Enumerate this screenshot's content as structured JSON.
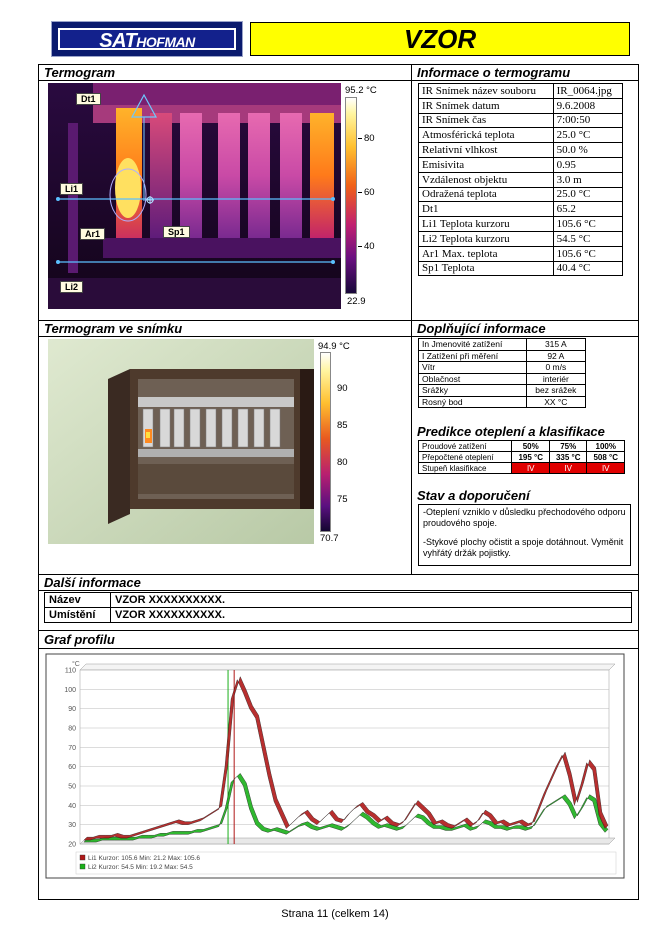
{
  "header": {
    "logo_main": "SAT",
    "logo_sub": "HOFMAN",
    "title": "VZOR"
  },
  "termogram": {
    "title": "Termogram",
    "scale_max": "95.2 °C",
    "scale_min": "22.9",
    "ticks": [
      "80",
      "60",
      "40"
    ],
    "markers": [
      "Dt1",
      "Li1",
      "Ar1",
      "Sp1",
      "Li2"
    ]
  },
  "info": {
    "title": "Informace o termogramu",
    "rows": [
      [
        "IR Snímek název souboru",
        "IR_0064.jpg"
      ],
      [
        "IR Snímek datum",
        "9.6.2008"
      ],
      [
        "IR Snímek čas",
        "7:00:50"
      ],
      [
        "Atmosférická teplota",
        "25.0 °C"
      ],
      [
        "Relativní vlhkost",
        "50.0 %"
      ],
      [
        "Emisivita",
        "0.95"
      ],
      [
        "Vzdálenost objektu",
        "3.0 m"
      ],
      [
        "Odražená teplota",
        "25.0 °C"
      ],
      [
        "Dt1",
        "65.2"
      ],
      [
        "Li1 Teplota kurzoru",
        "105.6 °C"
      ],
      [
        "Li2 Teplota kurzoru",
        "54.5 °C"
      ],
      [
        "Ar1 Max. teplota",
        "105.6 °C"
      ],
      [
        "Sp1 Teplota",
        "40.4 °C"
      ]
    ]
  },
  "photo": {
    "title": "Termogram ve snímku",
    "scale_max": "94.9 °C",
    "scale_min": "70.7",
    "ticks": [
      "90",
      "85",
      "80",
      "75"
    ]
  },
  "supplementary": {
    "title": "Doplňující informace",
    "rows": [
      [
        "In Jmenovité zatížení",
        "315 A"
      ],
      [
        "I Zatížení při měření",
        "92 A"
      ],
      [
        "Vítr",
        "0 m/s"
      ],
      [
        "Oblačnost",
        "interiér"
      ],
      [
        "Srážky",
        "bez srážek"
      ],
      [
        "Rosný bod",
        "XX °C"
      ]
    ]
  },
  "prediction": {
    "title": "Predikce oteplení a klasifikace",
    "header": [
      "Proudové zatížení",
      "50%",
      "75%",
      "100%"
    ],
    "row1": [
      "Přepočtené oteplení",
      "195 °C",
      "335 °C",
      "508 °C"
    ],
    "row2": [
      "Stupeň klasifikace",
      "IV",
      "IV",
      "IV"
    ]
  },
  "recommendation": {
    "title": "Stav a doporučení",
    "p1": "-Oteplení vzniklo v důsledku přechodového odporu proudového spoje.",
    "p2": "-Stykové plochy očistit a spoje dotáhnout. Vyměnit vyhřátý držák pojistky."
  },
  "dalsi": {
    "title": "Další informace",
    "rows": [
      [
        "Název",
        "VZOR XXXXXXXXXX."
      ],
      [
        "Umístění",
        "VZOR XXXXXXXXXX."
      ]
    ]
  },
  "graph_section": {
    "title": "Graf profilu"
  },
  "chart_data": {
    "type": "line",
    "ylabel": "°C",
    "ylim": [
      20,
      110
    ],
    "yticks": [
      "110",
      "100",
      "90",
      "80",
      "70",
      "60",
      "50",
      "40",
      "30",
      "20"
    ],
    "grid": true,
    "legend_position": "bottom-left",
    "series": [
      {
        "name": "Li1 Kurzor: 105.6 Min: 21.2 Max: 105.6",
        "color": "#b01818",
        "values": [
          22,
          22,
          23,
          23,
          23,
          24,
          23,
          23,
          24,
          25,
          26,
          27,
          28,
          29,
          30,
          31,
          30,
          30,
          31,
          32,
          34,
          36,
          38,
          60,
          95,
          105,
          98,
          90,
          85,
          70,
          55,
          42,
          35,
          28,
          31,
          34,
          36,
          32,
          30,
          33,
          36,
          32,
          31,
          35,
          38,
          40,
          36,
          34,
          31,
          33,
          30,
          29,
          31,
          36,
          41,
          38,
          35,
          30,
          31,
          29,
          28,
          30,
          32,
          29,
          31,
          36,
          34,
          30,
          31,
          29,
          30,
          31,
          29,
          30,
          38,
          46,
          53,
          60,
          66,
          55,
          40,
          50,
          62,
          58,
          35,
          28
        ]
      },
      {
        "name": "Li2 Kurzor: 54.5 Min: 19.2 Max: 54.5",
        "color": "#1ab01a",
        "values": [
          21,
          21,
          21,
          22,
          22,
          22,
          22,
          22,
          22,
          23,
          23,
          23,
          24,
          24,
          25,
          25,
          25,
          25,
          26,
          26,
          27,
          28,
          29,
          38,
          52,
          55,
          50,
          38,
          30,
          27,
          26,
          27,
          26,
          25,
          27,
          29,
          30,
          28,
          27,
          28,
          29,
          28,
          27,
          29,
          32,
          35,
          33,
          30,
          28,
          29,
          28,
          27,
          28,
          31,
          34,
          33,
          30,
          28,
          28,
          27,
          27,
          28,
          29,
          27,
          28,
          31,
          30,
          28,
          28,
          27,
          28,
          28,
          27,
          28,
          33,
          38,
          40,
          42,
          44,
          40,
          33,
          38,
          44,
          42,
          30,
          26
        ]
      }
    ]
  },
  "footer": "Strana 11 (celkem 14)"
}
